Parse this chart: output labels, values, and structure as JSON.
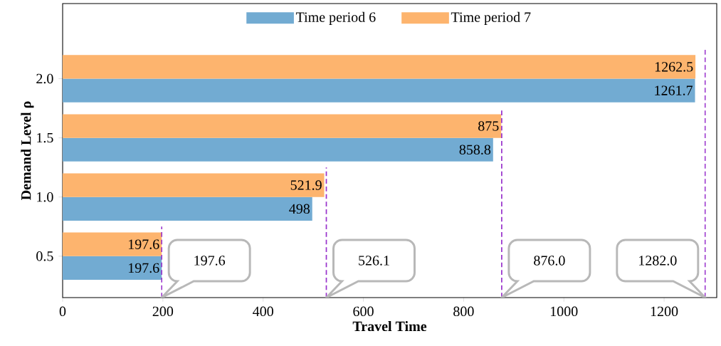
{
  "chart_data": {
    "type": "bar",
    "orientation": "horizontal",
    "xlabel": "Travel Time",
    "ylabel": "Demand Level ρ",
    "categories": [
      "2.0",
      "1.5",
      "1.0",
      "0.5"
    ],
    "series": [
      {
        "name": "Time period 6",
        "color": "#72abd2",
        "values": [
          1261.7,
          858.8,
          498,
          197.6
        ]
      },
      {
        "name": "Time period 7",
        "color": "#fdb46e",
        "values": [
          1262.5,
          875,
          521.9,
          197.6
        ]
      }
    ],
    "xlim": [
      0,
      1305
    ],
    "xticks": [
      0,
      200,
      400,
      600,
      800,
      1000,
      1200
    ],
    "data_labels": true,
    "legend": "top",
    "grid": false,
    "ref_lines": [
      {
        "axis": "x",
        "value": 197.6,
        "label": "197.6",
        "color": "#9933cc",
        "line_style": "dashed"
      },
      {
        "axis": "x",
        "value": 526.1,
        "label": "526.1",
        "color": "#9933cc",
        "line_style": "dashed"
      },
      {
        "axis": "x",
        "value": 876.0,
        "label": "876.0",
        "color": "#9933cc",
        "line_style": "dashed"
      },
      {
        "axis": "x",
        "value": 1282.0,
        "label": "1282.0",
        "color": "#9933cc",
        "line_style": "dashed"
      }
    ]
  }
}
